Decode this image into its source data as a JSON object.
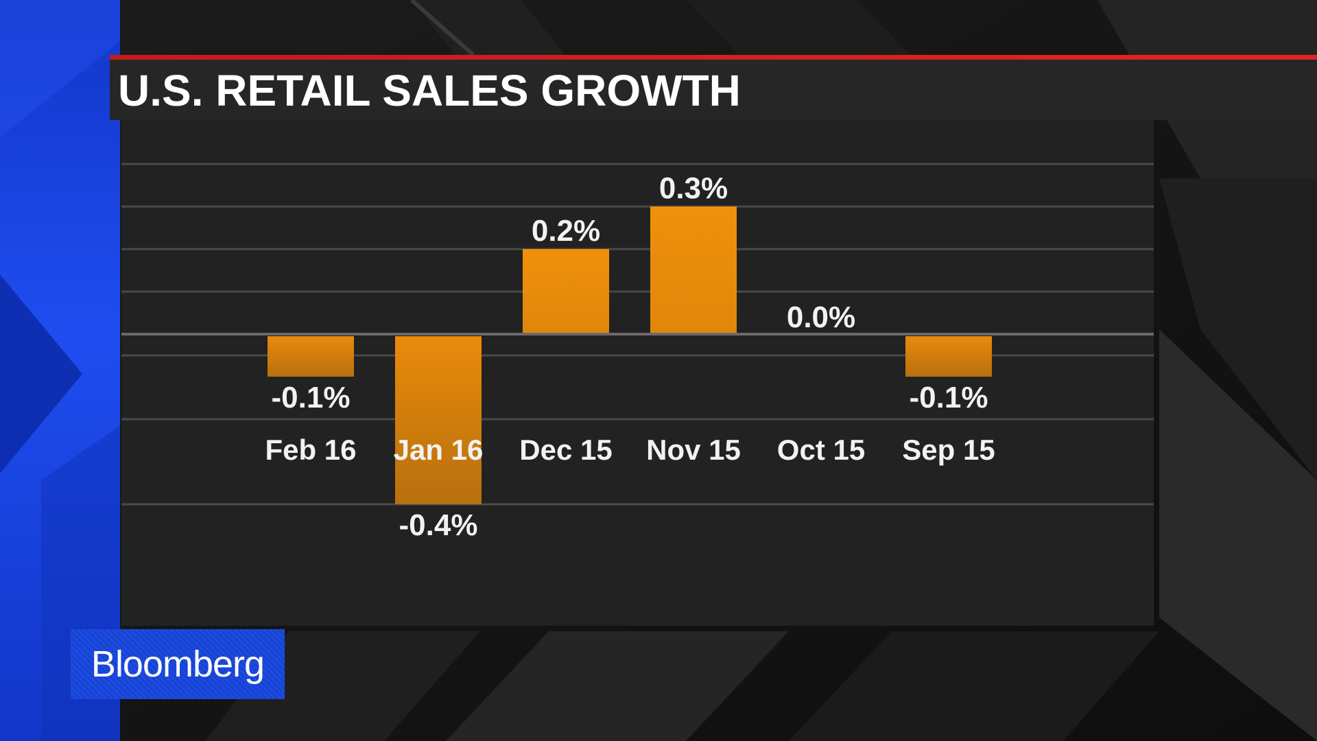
{
  "title": "U.S. RETAIL SALES GROWTH",
  "brand": {
    "logo_text": "Bloomberg"
  },
  "colors": {
    "background": "#161616",
    "panel": "#222222",
    "bar": "#e88a0c",
    "accent_red": "#d32020",
    "brand_blue": "#1644d8"
  },
  "chart_data": {
    "type": "bar",
    "categories": [
      "Feb 16",
      "Jan 16",
      "Dec 15",
      "Nov 15",
      "Oct 15",
      "Sep 15"
    ],
    "values": [
      -0.1,
      -0.4,
      0.2,
      0.3,
      0.0,
      -0.1
    ],
    "value_labels": [
      "-0.1%",
      "-0.4%",
      "0.2%",
      "0.3%",
      "0.0%",
      "-0.1%"
    ],
    "unit": "%",
    "ylim": [
      -0.4,
      0.4
    ],
    "gridlines": [
      0.4,
      0.3,
      0.2,
      0.1,
      -0.05,
      -0.2,
      -0.4
    ],
    "grid": true,
    "legend": "none",
    "xlabel": "",
    "ylabel": ""
  }
}
